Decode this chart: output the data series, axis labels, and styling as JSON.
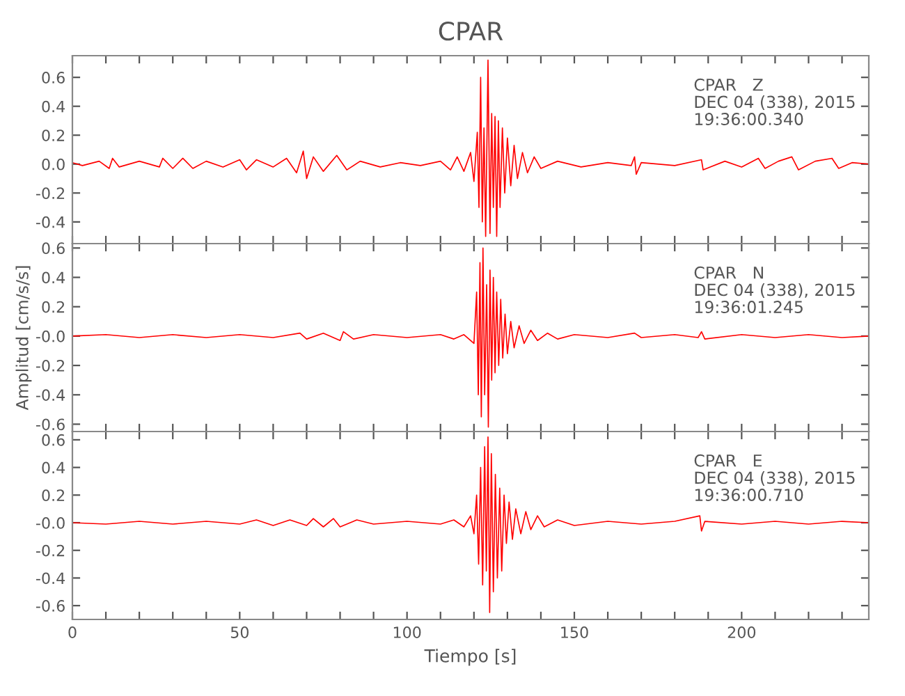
{
  "chart_data": [
    {
      "type": "line",
      "title": "CPAR",
      "tick_labels": "y",
      "grid": false,
      "legend": false,
      "marker": "none",
      "line_style": "solid",
      "xlim": [
        0,
        238
      ],
      "xticks": [
        0,
        {
          "value": 10,
          "label": null
        },
        {
          "value": 20,
          "label": null
        },
        {
          "value": 30,
          "label": null
        },
        {
          "value": 40,
          "label": null
        },
        50,
        {
          "value": 60,
          "label": null
        },
        {
          "value": 70,
          "label": null
        },
        {
          "value": 80,
          "label": null
        },
        {
          "value": 90,
          "label": null
        },
        100,
        {
          "value": 110,
          "label": null
        },
        {
          "value": 120,
          "label": null
        },
        {
          "value": 130,
          "label": null
        },
        {
          "value": 140,
          "label": null
        },
        150,
        {
          "value": 160,
          "label": null
        },
        {
          "value": 170,
          "label": null
        },
        {
          "value": 180,
          "label": null
        },
        {
          "value": 190,
          "label": null
        },
        200,
        {
          "value": 210,
          "label": null
        },
        {
          "value": 220,
          "label": null
        },
        {
          "value": 230,
          "label": null
        }
      ],
      "ylim": [
        -0.55,
        0.75
      ],
      "yticks": [
        {
          "value": -0.4,
          "label": "-0.4"
        },
        {
          "value": -0.2,
          "label": "-0.2"
        },
        {
          "value": 0,
          "label": "0.0"
        },
        0.2,
        0.4,
        0.6
      ],
      "annotations": [
        "CPAR   Z",
        "DEC 04 (338), 2015",
        "19:36:00.340"
      ],
      "series": [
        {
          "color": "#ff0000",
          "x": [
            0,
            3,
            8,
            11,
            12,
            14,
            20,
            26,
            27,
            30,
            33,
            36,
            40,
            45,
            50,
            52,
            55,
            60,
            64,
            67,
            69,
            70,
            72,
            75,
            79,
            82,
            86,
            92,
            98,
            104,
            110,
            113,
            115,
            117,
            119,
            120,
            121,
            121.5,
            122,
            122.5,
            123,
            123.5,
            124.2,
            124.8,
            125.3,
            125.8,
            126.3,
            126.8,
            127.3,
            127.8,
            128.5,
            129.2,
            130,
            131,
            132,
            133,
            134.5,
            136,
            138,
            140,
            145,
            152,
            160,
            167,
            168,
            168.5,
            170,
            180,
            188,
            188.5,
            195,
            200,
            205,
            207,
            211,
            215,
            217,
            222,
            227,
            229,
            233,
            238
          ],
          "values": [
            0.01,
            -0.01,
            0.02,
            -0.03,
            0.04,
            -0.02,
            0.02,
            -0.02,
            0.04,
            -0.03,
            0.04,
            -0.03,
            0.02,
            -0.02,
            0.03,
            -0.04,
            0.03,
            -0.02,
            0.04,
            -0.06,
            0.09,
            -0.1,
            0.05,
            -0.05,
            0.06,
            -0.04,
            0.02,
            -0.02,
            0.01,
            -0.01,
            0.02,
            -0.04,
            0.05,
            -0.05,
            0.08,
            -0.12,
            0.22,
            -0.3,
            0.6,
            -0.4,
            0.25,
            -0.5,
            0.72,
            -0.48,
            0.35,
            -0.3,
            0.33,
            -0.5,
            0.3,
            -0.3,
            0.25,
            -0.2,
            0.18,
            -0.15,
            0.13,
            -0.1,
            0.08,
            -0.06,
            0.05,
            -0.03,
            0.02,
            -0.02,
            0.01,
            -0.01,
            0.05,
            -0.07,
            0.01,
            -0.01,
            0.03,
            -0.04,
            0.02,
            -0.02,
            0.04,
            -0.03,
            0.02,
            0.05,
            -0.04,
            0.02,
            0.04,
            -0.03,
            0.01,
            0.0
          ]
        }
      ]
    },
    {
      "type": "line",
      "ylabel": "Amplitud [cm/s/s]",
      "tick_labels": "y",
      "grid": false,
      "legend": false,
      "marker": "none",
      "line_style": "solid",
      "xlim": [
        0,
        238
      ],
      "xticks": [
        0,
        {
          "value": 10,
          "label": null
        },
        {
          "value": 20,
          "label": null
        },
        {
          "value": 30,
          "label": null
        },
        {
          "value": 40,
          "label": null
        },
        50,
        {
          "value": 60,
          "label": null
        },
        {
          "value": 70,
          "label": null
        },
        {
          "value": 80,
          "label": null
        },
        {
          "value": 90,
          "label": null
        },
        100,
        {
          "value": 110,
          "label": null
        },
        {
          "value": 120,
          "label": null
        },
        {
          "value": 130,
          "label": null
        },
        {
          "value": 140,
          "label": null
        },
        150,
        {
          "value": 160,
          "label": null
        },
        {
          "value": 170,
          "label": null
        },
        {
          "value": 180,
          "label": null
        },
        {
          "value": 190,
          "label": null
        },
        200,
        {
          "value": 210,
          "label": null
        },
        {
          "value": 220,
          "label": null
        },
        {
          "value": 230,
          "label": null
        }
      ],
      "ylim": [
        -0.65,
        0.63
      ],
      "yticks": [
        {
          "value": -0.6,
          "label": "-0.6"
        },
        {
          "value": -0.4,
          "label": "-0.4"
        },
        {
          "value": -0.2,
          "label": "-0.2"
        },
        {
          "value": 0,
          "label": "-0.0"
        },
        0.2,
        0.4,
        0.6
      ],
      "annotations": [
        "CPAR   N",
        "DEC 04 (338), 2015",
        "19:36:01.245"
      ],
      "series": [
        {
          "color": "#ff0000",
          "x": [
            0,
            10,
            20,
            30,
            40,
            50,
            60,
            68,
            70,
            75,
            80,
            81,
            84,
            90,
            100,
            110,
            114,
            117,
            120,
            120.8,
            121.3,
            121.8,
            122.2,
            122.7,
            123.2,
            123.8,
            124.3,
            124.8,
            125.3,
            125.8,
            126.3,
            126.8,
            127.4,
            128,
            128.6,
            129.3,
            130,
            131,
            132,
            133.5,
            135,
            137,
            139,
            142,
            145,
            150,
            160,
            168,
            170,
            180,
            187,
            188,
            189,
            200,
            210,
            220,
            230,
            238
          ],
          "values": [
            0.0,
            0.01,
            -0.01,
            0.01,
            -0.01,
            0.01,
            -0.01,
            0.02,
            -0.02,
            0.02,
            -0.03,
            0.03,
            -0.02,
            0.01,
            -0.01,
            0.01,
            -0.02,
            0.01,
            -0.05,
            0.3,
            -0.4,
            0.5,
            -0.55,
            0.6,
            -0.4,
            0.35,
            -0.62,
            0.45,
            -0.3,
            0.4,
            -0.25,
            0.3,
            -0.2,
            0.25,
            -0.15,
            0.15,
            -0.12,
            0.1,
            -0.08,
            0.07,
            -0.05,
            0.04,
            -0.03,
            0.02,
            -0.02,
            0.01,
            -0.01,
            0.02,
            -0.01,
            0.01,
            -0.01,
            0.03,
            -0.02,
            0.01,
            -0.01,
            0.01,
            -0.01,
            0.0
          ]
        }
      ]
    },
    {
      "type": "line",
      "xlabel": "Tiempo [s]",
      "grid": false,
      "legend": false,
      "marker": "none",
      "line_style": "solid",
      "xlim": [
        0,
        238
      ],
      "xticks": [
        0,
        {
          "value": 10,
          "label": null
        },
        {
          "value": 20,
          "label": null
        },
        {
          "value": 30,
          "label": null
        },
        {
          "value": 40,
          "label": null
        },
        50,
        {
          "value": 60,
          "label": null
        },
        {
          "value": 70,
          "label": null
        },
        {
          "value": 80,
          "label": null
        },
        {
          "value": 90,
          "label": null
        },
        100,
        {
          "value": 110,
          "label": null
        },
        {
          "value": 120,
          "label": null
        },
        {
          "value": 130,
          "label": null
        },
        {
          "value": 140,
          "label": null
        },
        150,
        {
          "value": 160,
          "label": null
        },
        {
          "value": 170,
          "label": null
        },
        {
          "value": 180,
          "label": null
        },
        {
          "value": 190,
          "label": null
        },
        200,
        {
          "value": 210,
          "label": null
        },
        {
          "value": 220,
          "label": null
        },
        {
          "value": 230,
          "label": null
        }
      ],
      "ylim": [
        -0.7,
        0.66
      ],
      "yticks": [
        {
          "value": -0.6,
          "label": "-0.6"
        },
        {
          "value": -0.4,
          "label": "-0.4"
        },
        {
          "value": -0.2,
          "label": "-0.2"
        },
        {
          "value": 0,
          "label": "-0.0"
        },
        0.2,
        0.4,
        0.6
      ],
      "annotations": [
        "CPAR   E",
        "DEC 04 (338), 2015",
        "19:36:00.710"
      ],
      "series": [
        {
          "color": "#ff0000",
          "x": [
            0,
            10,
            20,
            30,
            40,
            50,
            55,
            60,
            65,
            70,
            72,
            75,
            78,
            80,
            85,
            90,
            100,
            110,
            114,
            117,
            119,
            120,
            120.8,
            121.4,
            122,
            122.6,
            123.2,
            123.7,
            124.2,
            124.7,
            125.2,
            125.8,
            126.4,
            127,
            127.7,
            128.3,
            129,
            129.7,
            130.5,
            131.5,
            132.5,
            134,
            135.5,
            137,
            139,
            141,
            145,
            150,
            160,
            170,
            180,
            187.5,
            188,
            189,
            200,
            210,
            220,
            230,
            238
          ],
          "values": [
            0.0,
            -0.01,
            0.01,
            -0.01,
            0.01,
            -0.01,
            0.02,
            -0.02,
            0.02,
            -0.02,
            0.03,
            -0.03,
            0.03,
            -0.03,
            0.02,
            -0.01,
            0.01,
            -0.01,
            0.02,
            -0.03,
            0.05,
            -0.08,
            0.2,
            -0.3,
            0.4,
            -0.45,
            0.55,
            -0.35,
            0.62,
            -0.65,
            0.5,
            -0.5,
            0.35,
            -0.4,
            0.25,
            -0.35,
            0.2,
            -0.15,
            0.15,
            -0.12,
            0.1,
            -0.08,
            0.08,
            -0.05,
            0.05,
            -0.03,
            0.02,
            -0.02,
            0.01,
            -0.01,
            0.01,
            0.05,
            -0.06,
            0.01,
            -0.01,
            0.01,
            -0.01,
            0.01,
            0.0
          ]
        }
      ]
    }
  ]
}
